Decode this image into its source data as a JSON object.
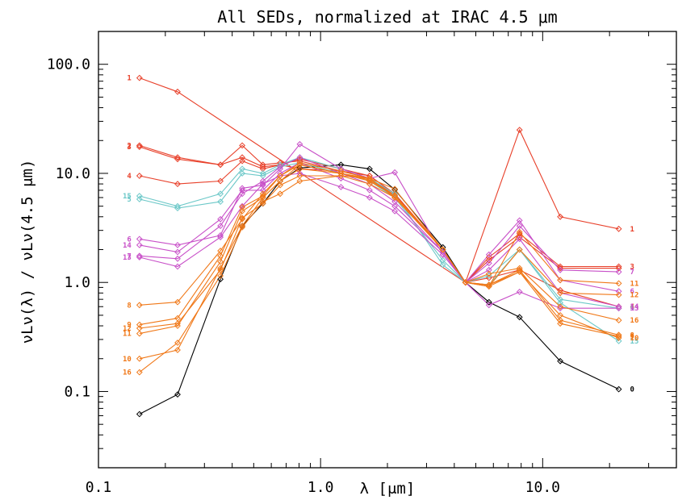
{
  "chart_data": {
    "type": "line",
    "title": "All SEDs, normalized at IRAC 4.5 μm",
    "xlabel": "λ [μm]",
    "ylabel": "νLν(λ) / νLν(4.5 μm)",
    "xscale": "log",
    "yscale": "log",
    "xlim": [
      0.1,
      40
    ],
    "ylim": [
      0.02,
      200
    ],
    "x_ticks": [
      {
        "v": 0.1,
        "label": "0.1"
      },
      {
        "v": 1,
        "label": "1.0"
      },
      {
        "v": 10,
        "label": "10.0"
      }
    ],
    "y_ticks": [
      {
        "v": 0.1,
        "label": "0.1"
      },
      {
        "v": 1,
        "label": "1.0"
      },
      {
        "v": 10,
        "label": "10.0"
      },
      {
        "v": 100,
        "label": "100.0"
      }
    ],
    "x": [
      0.153,
      0.227,
      0.354,
      0.444,
      0.55,
      0.658,
      0.806,
      1.235,
      1.662,
      2.159,
      3.55,
      4.493,
      5.731,
      7.872,
      12,
      22
    ],
    "colors": {
      "black": "#000000",
      "red": "#e8402a",
      "orange": "#f07818",
      "cyan": "#6cc8c8",
      "magenta": "#c850c8"
    },
    "series": [
      {
        "name": "0",
        "color": "black",
        "y": [
          0.062,
          0.094,
          1.07,
          3.3,
          5.3,
          8.5,
          11.2,
          12.0,
          11.0,
          7.1,
          2.1,
          1.0,
          0.66,
          0.48,
          0.19,
          0.105
        ],
        "label_end": "0"
      },
      {
        "name": "1",
        "color": "red",
        "y": [
          75,
          56,
          null,
          null,
          null,
          null,
          null,
          null,
          null,
          null,
          null,
          1.0,
          null,
          25,
          4.0,
          3.1
        ],
        "label_start": "1",
        "label_end": "1"
      },
      {
        "name": "2",
        "color": "red",
        "y": [
          18,
          14,
          12,
          18,
          12,
          12.5,
          13,
          10.5,
          9.5,
          6.5,
          2.0,
          1.0,
          1.6,
          2.6,
          1.35,
          1.35
        ],
        "label_start": "2"
      },
      {
        "name": "3",
        "color": "red",
        "y": [
          17.5,
          13.5,
          12,
          14,
          11.5,
          12,
          13.5,
          11,
          9.5,
          6.5,
          2.0,
          1.0,
          1.7,
          2.8,
          1.4,
          1.4
        ],
        "label_start": "3",
        "label_end": "3"
      },
      {
        "name": "4",
        "color": "red",
        "y": [
          9.5,
          8,
          8.5,
          13,
          11,
          12,
          11,
          10.5,
          9,
          6.3,
          2.0,
          1.0,
          1.1,
          1.3,
          0.85,
          0.6
        ],
        "label_start": "4",
        "label_end": "4"
      },
      {
        "name": "5",
        "color": "cyan",
        "y": [
          5.8,
          4.8,
          5.5,
          10,
          9.5,
          11.5,
          12.5,
          10,
          8.5,
          6.0,
          1.6,
          1.0,
          1.15,
          2.0,
          0.7,
          0.58
        ],
        "label_start": "5",
        "label_end": "5"
      },
      {
        "name": "15",
        "color": "cyan",
        "y": [
          6.2,
          5.0,
          6.5,
          11,
          10,
          12,
          14,
          11,
          9,
          6.5,
          1.45,
          1.0,
          0.95,
          2.0,
          0.65,
          0.29
        ],
        "label_start": "15",
        "label_end": "15"
      },
      {
        "name": "6",
        "color": "magenta",
        "y": [
          2.5,
          2.2,
          2.7,
          7.3,
          7.8,
          11,
          18.5,
          11,
          9,
          10.2,
          1.8,
          1.0,
          1.8,
          3.7,
          1.05,
          0.83
        ],
        "label_start": "6",
        "label_end": "6"
      },
      {
        "name": "7",
        "color": "magenta",
        "y": [
          1.75,
          1.65,
          3.3,
          6.5,
          8.5,
          11.5,
          14,
          10,
          8,
          5.5,
          1.9,
          1.0,
          1.5,
          3.3,
          1.3,
          1.25
        ],
        "label_start": "7",
        "label_end": "7"
      },
      {
        "name": "13",
        "color": "magenta",
        "y": [
          1.7,
          1.4,
          2.6,
          5,
          8,
          9.5,
          10,
          7.5,
          6,
          4.5,
          1.8,
          1.0,
          0.62,
          0.82,
          0.58,
          0.58
        ],
        "label_start": "13",
        "label_end": "13"
      },
      {
        "name": "14",
        "color": "magenta",
        "y": [
          2.2,
          1.9,
          3.8,
          7,
          7,
          10,
          12.5,
          9,
          7,
          5.0,
          1.9,
          1.0,
          1.3,
          2.5,
          0.8,
          0.6
        ],
        "label_start": "14",
        "label_end": "14"
      },
      {
        "name": "8",
        "color": "orange",
        "y": [
          0.62,
          0.66,
          1.95,
          3.8,
          6.5,
          9.5,
          12,
          10,
          9,
          6.0,
          2.0,
          1.0,
          0.95,
          1.3,
          0.45,
          0.33
        ],
        "label_start": "8",
        "label_end": "8"
      },
      {
        "name": "9",
        "color": "orange",
        "y": [
          0.41,
          0.47,
          1.75,
          4.9,
          6.2,
          9.5,
          12.5,
          10.5,
          9,
          6.0,
          2.0,
          1.0,
          0.92,
          1.25,
          0.42,
          0.32
        ],
        "label_start": "9",
        "label_end": "9"
      },
      {
        "name": "10",
        "color": "orange",
        "y": [
          0.2,
          0.24,
          1.35,
          3.3,
          6.0,
          8.5,
          12,
          10,
          8.5,
          6.2,
          2.0,
          1.0,
          0.95,
          1.25,
          0.5,
          0.31
        ],
        "label_start": "10",
        "label_end": "10"
      },
      {
        "name": "11",
        "color": "orange",
        "y": [
          0.34,
          0.4,
          1.55,
          4.5,
          6.0,
          8.5,
          11,
          10,
          8.7,
          6.3,
          2.0,
          1.0,
          0.92,
          2.9,
          1.05,
          0.98
        ],
        "label_start": "11",
        "label_end": "11"
      },
      {
        "name": "12",
        "color": "orange",
        "y": [
          0.38,
          0.42,
          1.3,
          3.9,
          5.3,
          7.8,
          9.5,
          9.5,
          9,
          7.2,
          2.0,
          1.0,
          0.92,
          2.0,
          0.8,
          0.77
        ],
        "label_start": "12",
        "label_end": "12"
      },
      {
        "name": "16",
        "color": "orange",
        "y": [
          0.15,
          0.28,
          1.15,
          3.2,
          5.5,
          6.5,
          8.5,
          9.5,
          8,
          6.0,
          2.0,
          1.0,
          1.2,
          1.35,
          0.6,
          0.45
        ],
        "label_start": "16",
        "label_end": "16"
      }
    ]
  }
}
